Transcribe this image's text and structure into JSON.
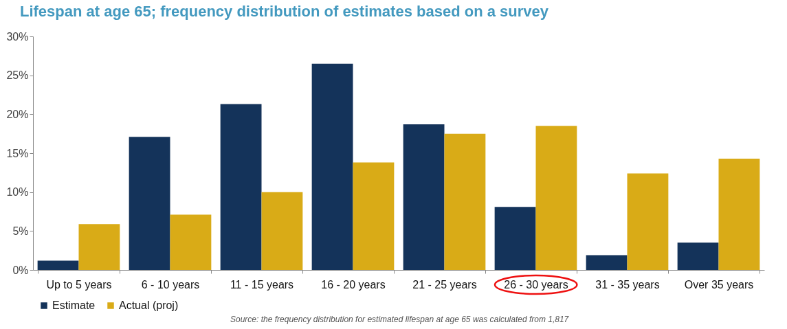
{
  "chart_data": {
    "type": "bar",
    "title": "Lifespan at age 65; frequency distribution of estimates based on a survey",
    "categories": [
      "Up to 5 years",
      "6 - 10 years",
      "11 - 15 years",
      "16 - 20 years",
      "21 - 25 years",
      "26 - 30 years",
      "31 - 35 years",
      "Over 35 years"
    ],
    "series": [
      {
        "name": "Estimate",
        "color": "#14335a",
        "values": [
          1.2,
          17.1,
          21.3,
          26.5,
          18.7,
          8.1,
          1.9,
          3.5
        ]
      },
      {
        "name": "Actual (proj)",
        "color": "#d9ab17",
        "values": [
          5.9,
          7.1,
          10.0,
          13.8,
          17.5,
          18.5,
          12.4,
          14.3
        ]
      }
    ],
    "ylim": [
      0,
      30
    ],
    "yticks": [
      {
        "value": 0,
        "label": "0%"
      },
      {
        "value": 5,
        "label": "5%"
      },
      {
        "value": 10,
        "label": "10%"
      },
      {
        "value": 15,
        "label": "15%"
      },
      {
        "value": 20,
        "label": "20%"
      },
      {
        "value": 25,
        "label": "25%"
      },
      {
        "value": 30,
        "label": "30%"
      }
    ],
    "grid": false,
    "legend": "bottom left",
    "annotations": [
      "Source: the frequency distribution for estimated lifespan at age 65 was calculated from 1,817"
    ]
  }
}
